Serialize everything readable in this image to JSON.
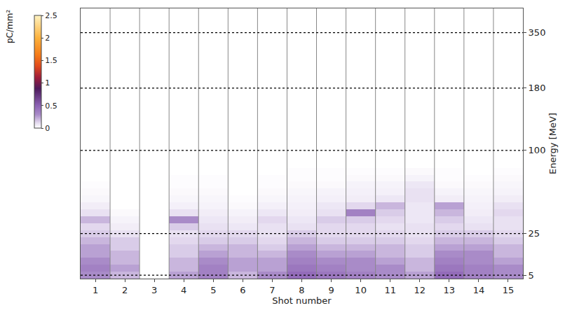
{
  "chart_data": {
    "type": "heatmap",
    "x_label": "Shot number",
    "y_label": "Energy [MeV]",
    "colorbar_title": "pC/mm²",
    "x": [
      1,
      2,
      3,
      4,
      5,
      6,
      7,
      8,
      9,
      10,
      11,
      12,
      13,
      14,
      15
    ],
    "xticks": [
      1,
      2,
      3,
      4,
      5,
      6,
      7,
      8,
      9,
      10,
      11,
      12,
      13,
      14,
      15
    ],
    "xlim": [
      0.5,
      15.5
    ],
    "y": [
      5,
      8,
      11,
      15,
      18,
      21,
      25,
      31,
      37,
      44,
      50,
      56,
      62,
      69,
      75,
      81,
      87,
      94,
      100,
      109,
      118,
      127,
      136,
      144,
      153,
      162,
      171,
      180,
      201,
      222,
      244,
      265,
      286,
      308,
      329,
      350,
      380,
      410,
      440
    ],
    "yticks": [
      5,
      25,
      100,
      180,
      350
    ],
    "grid": true,
    "zlim": [
      0,
      2.5
    ],
    "zticks": [
      0,
      0.5,
      1,
      1.5,
      2,
      2.5
    ],
    "z": [
      [
        0.3,
        0.2,
        0,
        0.25,
        0.35,
        0.2,
        0.3,
        0.45,
        0.4,
        0.35,
        0.3,
        0.25,
        0.45,
        0.35,
        0.3
      ],
      [
        0.35,
        0.25,
        0,
        0.2,
        0.35,
        0.25,
        0.25,
        0.4,
        0.35,
        0.3,
        0.3,
        0.2,
        0.4,
        0.35,
        0.3
      ],
      [
        0.3,
        0.2,
        0,
        0.2,
        0.3,
        0.25,
        0.25,
        0.35,
        0.3,
        0.3,
        0.25,
        0.2,
        0.35,
        0.3,
        0.25
      ],
      [
        0.25,
        0.2,
        0,
        0.15,
        0.25,
        0.2,
        0.2,
        0.3,
        0.25,
        0.25,
        0.2,
        0.15,
        0.3,
        0.3,
        0.2
      ],
      [
        0.25,
        0.15,
        0,
        0.15,
        0.2,
        0.2,
        0.15,
        0.25,
        0.2,
        0.2,
        0.2,
        0.15,
        0.25,
        0.25,
        0.2
      ],
      [
        0.2,
        0.15,
        0,
        0.12,
        0.15,
        0.15,
        0.12,
        0.2,
        0.15,
        0.15,
        0.15,
        0.12,
        0.2,
        0.2,
        0.15
      ],
      [
        0.15,
        0.1,
        0,
        0.1,
        0.12,
        0.12,
        0.1,
        0.15,
        0.12,
        0.12,
        0.12,
        0.1,
        0.15,
        0.15,
        0.12
      ],
      [
        0.12,
        0.06,
        0,
        0.15,
        0.1,
        0.08,
        0.1,
        0.1,
        0.12,
        0.12,
        0.1,
        0.1,
        0.12,
        0.1,
        0.1
      ],
      [
        0.2,
        0.04,
        0,
        0.3,
        0.08,
        0.06,
        0.12,
        0.08,
        0.15,
        0.15,
        0.12,
        0.08,
        0.15,
        0.08,
        0.1
      ],
      [
        0.1,
        0.02,
        0,
        0.1,
        0.06,
        0.04,
        0.08,
        0.06,
        0.1,
        0.35,
        0.15,
        0.08,
        0.2,
        0.06,
        0.12
      ],
      [
        0.06,
        0,
        0,
        0.05,
        0.04,
        0.02,
        0.05,
        0.05,
        0.08,
        0.12,
        0.2,
        0.08,
        0.25,
        0.05,
        0.1
      ],
      [
        0.03,
        0,
        0,
        0.03,
        0.03,
        0.01,
        0.03,
        0.04,
        0.05,
        0.06,
        0.08,
        0.1,
        0.06,
        0.04,
        0.06
      ],
      [
        0.02,
        0,
        0,
        0.02,
        0.02,
        0,
        0.02,
        0.03,
        0.04,
        0.05,
        0.05,
        0.1,
        0.04,
        0.03,
        0.04
      ],
      [
        0.01,
        0,
        0,
        0.01,
        0.01,
        0,
        0.01,
        0.02,
        0.02,
        0.04,
        0.04,
        0.08,
        0.02,
        0.02,
        0.03
      ],
      [
        0,
        0,
        0,
        0.01,
        0.01,
        0,
        0.01,
        0.01,
        0.01,
        0.02,
        0.02,
        0.04,
        0.01,
        0.01,
        0.02
      ],
      [
        0,
        0,
        0,
        0,
        0,
        0,
        0,
        0.01,
        0.01,
        0.01,
        0.01,
        0.02,
        0.01,
        0,
        0.01
      ],
      [
        0,
        0,
        0,
        0,
        0,
        0,
        0,
        0,
        0,
        0,
        0,
        0,
        0,
        0,
        0
      ],
      [
        0,
        0,
        0,
        0,
        0,
        0,
        0,
        0,
        0,
        0,
        0,
        0,
        0,
        0,
        0
      ],
      [
        0,
        0,
        0,
        0,
        0,
        0,
        0,
        0,
        0,
        0,
        0,
        0,
        0,
        0,
        0
      ],
      [
        0,
        0,
        0,
        0,
        0,
        0,
        0,
        0,
        0,
        0,
        0,
        0,
        0,
        0,
        0
      ],
      [
        0,
        0,
        0,
        0,
        0,
        0,
        0,
        0,
        0,
        0,
        0,
        0,
        0,
        0,
        0
      ],
      [
        0,
        0,
        0,
        0,
        0,
        0,
        0,
        0,
        0,
        0,
        0,
        0,
        0,
        0,
        0
      ],
      [
        0,
        0,
        0,
        0,
        0,
        0,
        0,
        0,
        0,
        0,
        0,
        0,
        0,
        0,
        0
      ],
      [
        0,
        0,
        0,
        0,
        0,
        0,
        0,
        0,
        0,
        0,
        0,
        0,
        0,
        0,
        0
      ],
      [
        0,
        0,
        0,
        0,
        0,
        0,
        0,
        0,
        0,
        0,
        0,
        0,
        0,
        0,
        0
      ],
      [
        0,
        0,
        0,
        0,
        0,
        0,
        0,
        0,
        0,
        0,
        0,
        0,
        0,
        0,
        0
      ],
      [
        0,
        0,
        0,
        0,
        0,
        0,
        0,
        0,
        0,
        0,
        0,
        0,
        0,
        0,
        0
      ],
      [
        0,
        0,
        0,
        0,
        0,
        0,
        0,
        0,
        0,
        0,
        0,
        0,
        0,
        0,
        0
      ],
      [
        0,
        0,
        0,
        0,
        0,
        0,
        0,
        0,
        0,
        0,
        0,
        0,
        0,
        0,
        0
      ],
      [
        0,
        0,
        0,
        0,
        0,
        0,
        0,
        0,
        0,
        0,
        0,
        0,
        0,
        0,
        0
      ],
      [
        0,
        0,
        0,
        0,
        0,
        0,
        0,
        0,
        0,
        0,
        0,
        0,
        0,
        0,
        0
      ],
      [
        0,
        0,
        0,
        0,
        0,
        0,
        0,
        0,
        0,
        0,
        0,
        0,
        0,
        0,
        0
      ],
      [
        0,
        0,
        0,
        0,
        0,
        0,
        0,
        0,
        0,
        0,
        0,
        0,
        0,
        0,
        0
      ],
      [
        0,
        0,
        0,
        0,
        0,
        0,
        0,
        0,
        0,
        0,
        0,
        0,
        0,
        0,
        0
      ],
      [
        0,
        0,
        0,
        0,
        0,
        0,
        0,
        0,
        0,
        0,
        0,
        0,
        0,
        0,
        0
      ],
      [
        0,
        0,
        0,
        0,
        0,
        0,
        0,
        0,
        0,
        0,
        0,
        0,
        0,
        0,
        0
      ],
      [
        0,
        0,
        0,
        0,
        0,
        0,
        0,
        0,
        0,
        0,
        0,
        0,
        0,
        0,
        0
      ],
      [
        0,
        0,
        0,
        0,
        0,
        0,
        0,
        0,
        0,
        0,
        0,
        0,
        0,
        0,
        0
      ],
      [
        0,
        0,
        0,
        0,
        0,
        0,
        0,
        0,
        0,
        0,
        0,
        0,
        0,
        0,
        0
      ]
    ]
  }
}
